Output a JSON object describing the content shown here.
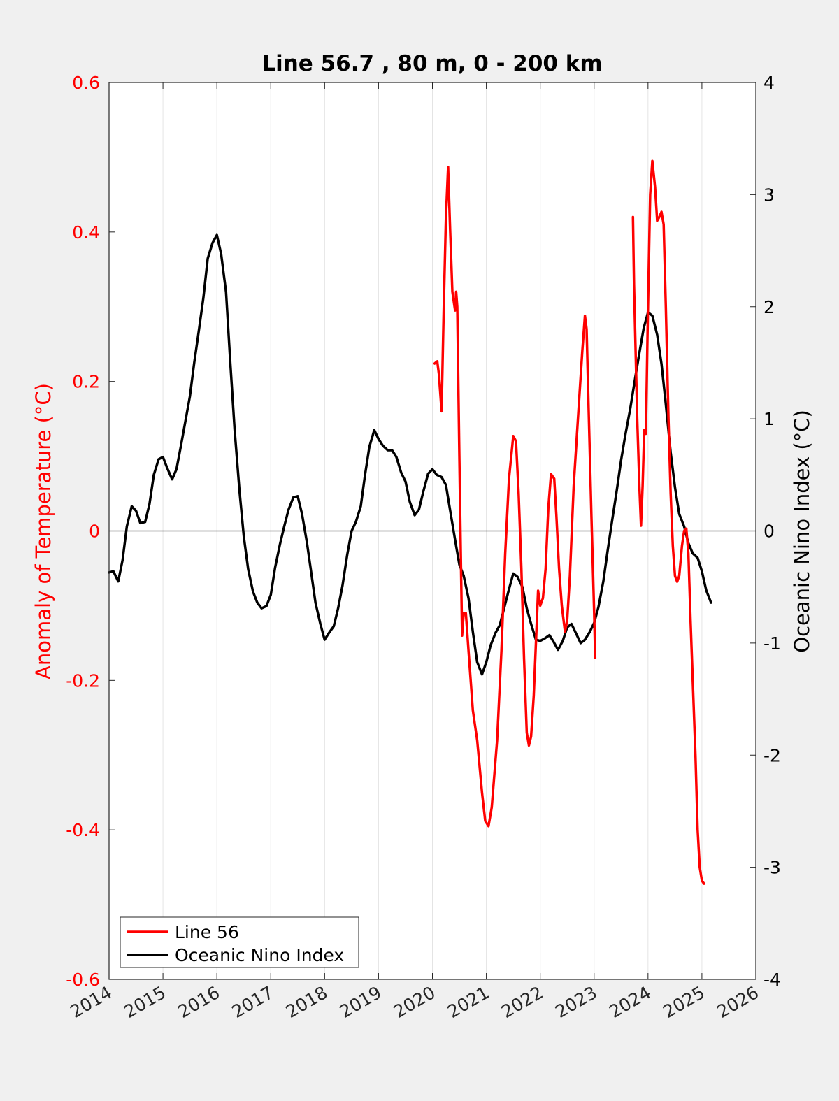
{
  "chart_data": {
    "type": "line",
    "title": "Line 56.7 , 80 m, 0 - 200 km",
    "xlabel": "",
    "ylabel_left": "Anomaly of Temperature (°C)",
    "ylabel_right": "Oceanic Nino Index (°C)",
    "xlim": [
      2014,
      2026
    ],
    "ylim_left": [
      -0.6,
      0.6
    ],
    "ylim_right": [
      -4,
      4
    ],
    "x_ticks": [
      "2014",
      "2015",
      "2016",
      "2017",
      "2018",
      "2019",
      "2020",
      "2021",
      "2022",
      "2023",
      "2024",
      "2025",
      "2026"
    ],
    "y_left_ticks": [
      "0.6",
      "0.4",
      "0.2",
      "0",
      "-0.2",
      "-0.4",
      "-0.6"
    ],
    "y_right_ticks": [
      "4",
      "3",
      "2",
      "1",
      "0",
      "-1",
      "-2",
      "-3",
      "-4"
    ],
    "grid": "vertical",
    "legend_position": "bottom-left",
    "colors": {
      "line56": "#ff0000",
      "oni": "#000000",
      "left_axis": "#ff0000",
      "right_axis": "#000000"
    },
    "series": [
      {
        "name": "Line 56",
        "axis": "left",
        "segments": [
          [
            [
              2020.04,
              0.224
            ],
            [
              2020.09,
              0.227
            ],
            [
              2020.12,
              0.21
            ],
            [
              2020.17,
              0.16
            ],
            [
              2020.21,
              0.3
            ],
            [
              2020.25,
              0.42
            ],
            [
              2020.29,
              0.487
            ],
            [
              2020.33,
              0.4
            ],
            [
              2020.37,
              0.32
            ],
            [
              2020.41,
              0.3
            ],
            [
              2020.42,
              0.295
            ],
            [
              2020.44,
              0.32
            ],
            [
              2020.46,
              0.3
            ],
            [
              2020.5,
              0.1
            ],
            [
              2020.53,
              -0.05
            ],
            [
              2020.55,
              -0.14
            ],
            [
              2020.58,
              -0.11
            ],
            [
              2020.62,
              -0.11
            ],
            [
              2020.67,
              -0.16
            ],
            [
              2020.75,
              -0.24
            ],
            [
              2020.83,
              -0.28
            ],
            [
              2020.92,
              -0.35
            ],
            [
              2020.98,
              -0.388
            ],
            [
              2021.04,
              -0.395
            ],
            [
              2021.1,
              -0.37
            ],
            [
              2021.2,
              -0.28
            ],
            [
              2021.28,
              -0.16
            ],
            [
              2021.35,
              -0.03
            ],
            [
              2021.42,
              0.07
            ],
            [
              2021.5,
              0.127
            ],
            [
              2021.55,
              0.12
            ],
            [
              2021.6,
              0.05
            ],
            [
              2021.65,
              -0.05
            ],
            [
              2021.7,
              -0.17
            ],
            [
              2021.75,
              -0.27
            ],
            [
              2021.79,
              -0.287
            ],
            [
              2021.83,
              -0.275
            ],
            [
              2021.88,
              -0.22
            ],
            [
              2021.92,
              -0.15
            ],
            [
              2021.96,
              -0.08
            ],
            [
              2022.0,
              -0.1
            ],
            [
              2022.05,
              -0.09
            ],
            [
              2022.1,
              -0.05
            ],
            [
              2022.15,
              0.03
            ],
            [
              2022.2,
              0.076
            ],
            [
              2022.26,
              0.07
            ],
            [
              2022.3,
              0.02
            ],
            [
              2022.35,
              -0.05
            ],
            [
              2022.4,
              -0.1
            ],
            [
              2022.46,
              -0.135
            ],
            [
              2022.5,
              -0.12
            ],
            [
              2022.55,
              -0.06
            ],
            [
              2022.62,
              0.06
            ],
            [
              2022.7,
              0.15
            ],
            [
              2022.78,
              0.24
            ],
            [
              2022.83,
              0.288
            ],
            [
              2022.86,
              0.27
            ],
            [
              2022.9,
              0.16
            ],
            [
              2022.95,
              0.02
            ],
            [
              2023.0,
              -0.11
            ],
            [
              2023.02,
              -0.17
            ]
          ],
          [
            [
              2023.72,
              0.42
            ],
            [
              2023.74,
              0.33
            ],
            [
              2023.77,
              0.24
            ],
            [
              2023.8,
              0.15
            ],
            [
              2023.84,
              0.06
            ],
            [
              2023.87,
              0.007
            ],
            [
              2023.9,
              0.06
            ],
            [
              2023.93,
              0.135
            ],
            [
              2023.96,
              0.13
            ],
            [
              2024.0,
              0.3
            ],
            [
              2024.04,
              0.45
            ],
            [
              2024.08,
              0.495
            ],
            [
              2024.13,
              0.46
            ],
            [
              2024.17,
              0.415
            ],
            [
              2024.21,
              0.42
            ],
            [
              2024.25,
              0.427
            ],
            [
              2024.29,
              0.41
            ],
            [
              2024.33,
              0.3
            ],
            [
              2024.38,
              0.15
            ],
            [
              2024.42,
              0.05
            ],
            [
              2024.46,
              -0.02
            ],
            [
              2024.5,
              -0.06
            ],
            [
              2024.54,
              -0.068
            ],
            [
              2024.58,
              -0.06
            ],
            [
              2024.63,
              -0.02
            ],
            [
              2024.67,
              0.0
            ],
            [
              2024.71,
              0.003
            ],
            [
              2024.75,
              -0.03
            ],
            [
              2024.79,
              -0.12
            ],
            [
              2024.83,
              -0.2
            ],
            [
              2024.88,
              -0.3
            ],
            [
              2024.92,
              -0.4
            ],
            [
              2024.96,
              -0.45
            ],
            [
              2025.0,
              -0.468
            ],
            [
              2025.04,
              -0.472
            ]
          ]
        ]
      },
      {
        "name": "Oceanic Nino Index",
        "axis": "right",
        "points": [
          [
            2014.0,
            -0.37
          ],
          [
            2014.08,
            -0.36
          ],
          [
            2014.17,
            -0.45
          ],
          [
            2014.25,
            -0.26
          ],
          [
            2014.33,
            0.04
          ],
          [
            2014.42,
            0.22
          ],
          [
            2014.5,
            0.18
          ],
          [
            2014.58,
            0.07
          ],
          [
            2014.67,
            0.08
          ],
          [
            2014.75,
            0.24
          ],
          [
            2014.83,
            0.5
          ],
          [
            2014.92,
            0.64
          ],
          [
            2015.0,
            0.66
          ],
          [
            2015.08,
            0.56
          ],
          [
            2015.17,
            0.46
          ],
          [
            2015.25,
            0.55
          ],
          [
            2015.33,
            0.75
          ],
          [
            2015.42,
            0.99
          ],
          [
            2015.5,
            1.2
          ],
          [
            2015.58,
            1.5
          ],
          [
            2015.67,
            1.8
          ],
          [
            2015.75,
            2.08
          ],
          [
            2015.83,
            2.43
          ],
          [
            2015.92,
            2.57
          ],
          [
            2016.0,
            2.64
          ],
          [
            2016.08,
            2.47
          ],
          [
            2016.17,
            2.13
          ],
          [
            2016.25,
            1.5
          ],
          [
            2016.33,
            0.9
          ],
          [
            2016.42,
            0.36
          ],
          [
            2016.5,
            -0.05
          ],
          [
            2016.58,
            -0.34
          ],
          [
            2016.67,
            -0.54
          ],
          [
            2016.75,
            -0.64
          ],
          [
            2016.83,
            -0.69
          ],
          [
            2016.92,
            -0.67
          ],
          [
            2017.0,
            -0.57
          ],
          [
            2017.08,
            -0.33
          ],
          [
            2017.17,
            -0.12
          ],
          [
            2017.25,
            0.04
          ],
          [
            2017.33,
            0.19
          ],
          [
            2017.42,
            0.3
          ],
          [
            2017.5,
            0.31
          ],
          [
            2017.58,
            0.15
          ],
          [
            2017.67,
            -0.1
          ],
          [
            2017.75,
            -0.37
          ],
          [
            2017.83,
            -0.64
          ],
          [
            2017.92,
            -0.83
          ],
          [
            2018.0,
            -0.97
          ],
          [
            2018.08,
            -0.91
          ],
          [
            2018.17,
            -0.85
          ],
          [
            2018.25,
            -0.69
          ],
          [
            2018.33,
            -0.49
          ],
          [
            2018.42,
            -0.21
          ],
          [
            2018.5,
            0.0
          ],
          [
            2018.58,
            0.08
          ],
          [
            2018.67,
            0.22
          ],
          [
            2018.75,
            0.5
          ],
          [
            2018.83,
            0.75
          ],
          [
            2018.92,
            0.9
          ],
          [
            2019.0,
            0.82
          ],
          [
            2019.08,
            0.76
          ],
          [
            2019.17,
            0.72
          ],
          [
            2019.25,
            0.72
          ],
          [
            2019.33,
            0.66
          ],
          [
            2019.42,
            0.52
          ],
          [
            2019.5,
            0.44
          ],
          [
            2019.58,
            0.26
          ],
          [
            2019.67,
            0.14
          ],
          [
            2019.75,
            0.19
          ],
          [
            2019.83,
            0.35
          ],
          [
            2019.92,
            0.51
          ],
          [
            2020.0,
            0.55
          ],
          [
            2020.08,
            0.5
          ],
          [
            2020.17,
            0.48
          ],
          [
            2020.25,
            0.41
          ],
          [
            2020.33,
            0.18
          ],
          [
            2020.42,
            -0.08
          ],
          [
            2020.5,
            -0.3
          ],
          [
            2020.58,
            -0.4
          ],
          [
            2020.67,
            -0.6
          ],
          [
            2020.75,
            -0.9
          ],
          [
            2020.83,
            -1.17
          ],
          [
            2020.92,
            -1.28
          ],
          [
            2021.0,
            -1.17
          ],
          [
            2021.08,
            -1.02
          ],
          [
            2021.17,
            -0.91
          ],
          [
            2021.25,
            -0.84
          ],
          [
            2021.33,
            -0.69
          ],
          [
            2021.42,
            -0.52
          ],
          [
            2021.5,
            -0.38
          ],
          [
            2021.58,
            -0.41
          ],
          [
            2021.67,
            -0.5
          ],
          [
            2021.75,
            -0.69
          ],
          [
            2021.83,
            -0.83
          ],
          [
            2021.92,
            -0.97
          ],
          [
            2022.0,
            -0.98
          ],
          [
            2022.08,
            -0.96
          ],
          [
            2022.17,
            -0.93
          ],
          [
            2022.25,
            -0.99
          ],
          [
            2022.33,
            -1.06
          ],
          [
            2022.42,
            -0.98
          ],
          [
            2022.5,
            -0.86
          ],
          [
            2022.58,
            -0.83
          ],
          [
            2022.67,
            -0.92
          ],
          [
            2022.75,
            -1.0
          ],
          [
            2022.83,
            -0.97
          ],
          [
            2022.92,
            -0.9
          ],
          [
            2023.0,
            -0.82
          ],
          [
            2023.08,
            -0.68
          ],
          [
            2023.17,
            -0.45
          ],
          [
            2023.25,
            -0.18
          ],
          [
            2023.33,
            0.08
          ],
          [
            2023.42,
            0.36
          ],
          [
            2023.5,
            0.63
          ],
          [
            2023.58,
            0.86
          ],
          [
            2023.67,
            1.09
          ],
          [
            2023.75,
            1.33
          ],
          [
            2023.83,
            1.56
          ],
          [
            2023.92,
            1.81
          ],
          [
            2024.0,
            1.95
          ],
          [
            2024.08,
            1.92
          ],
          [
            2024.17,
            1.75
          ],
          [
            2024.25,
            1.49
          ],
          [
            2024.33,
            1.13
          ],
          [
            2024.42,
            0.7
          ],
          [
            2024.5,
            0.39
          ],
          [
            2024.58,
            0.15
          ],
          [
            2024.67,
            0.04
          ],
          [
            2024.75,
            -0.11
          ],
          [
            2024.83,
            -0.2
          ],
          [
            2024.92,
            -0.24
          ],
          [
            2025.0,
            -0.36
          ],
          [
            2025.08,
            -0.53
          ],
          [
            2025.17,
            -0.64
          ]
        ]
      }
    ]
  }
}
